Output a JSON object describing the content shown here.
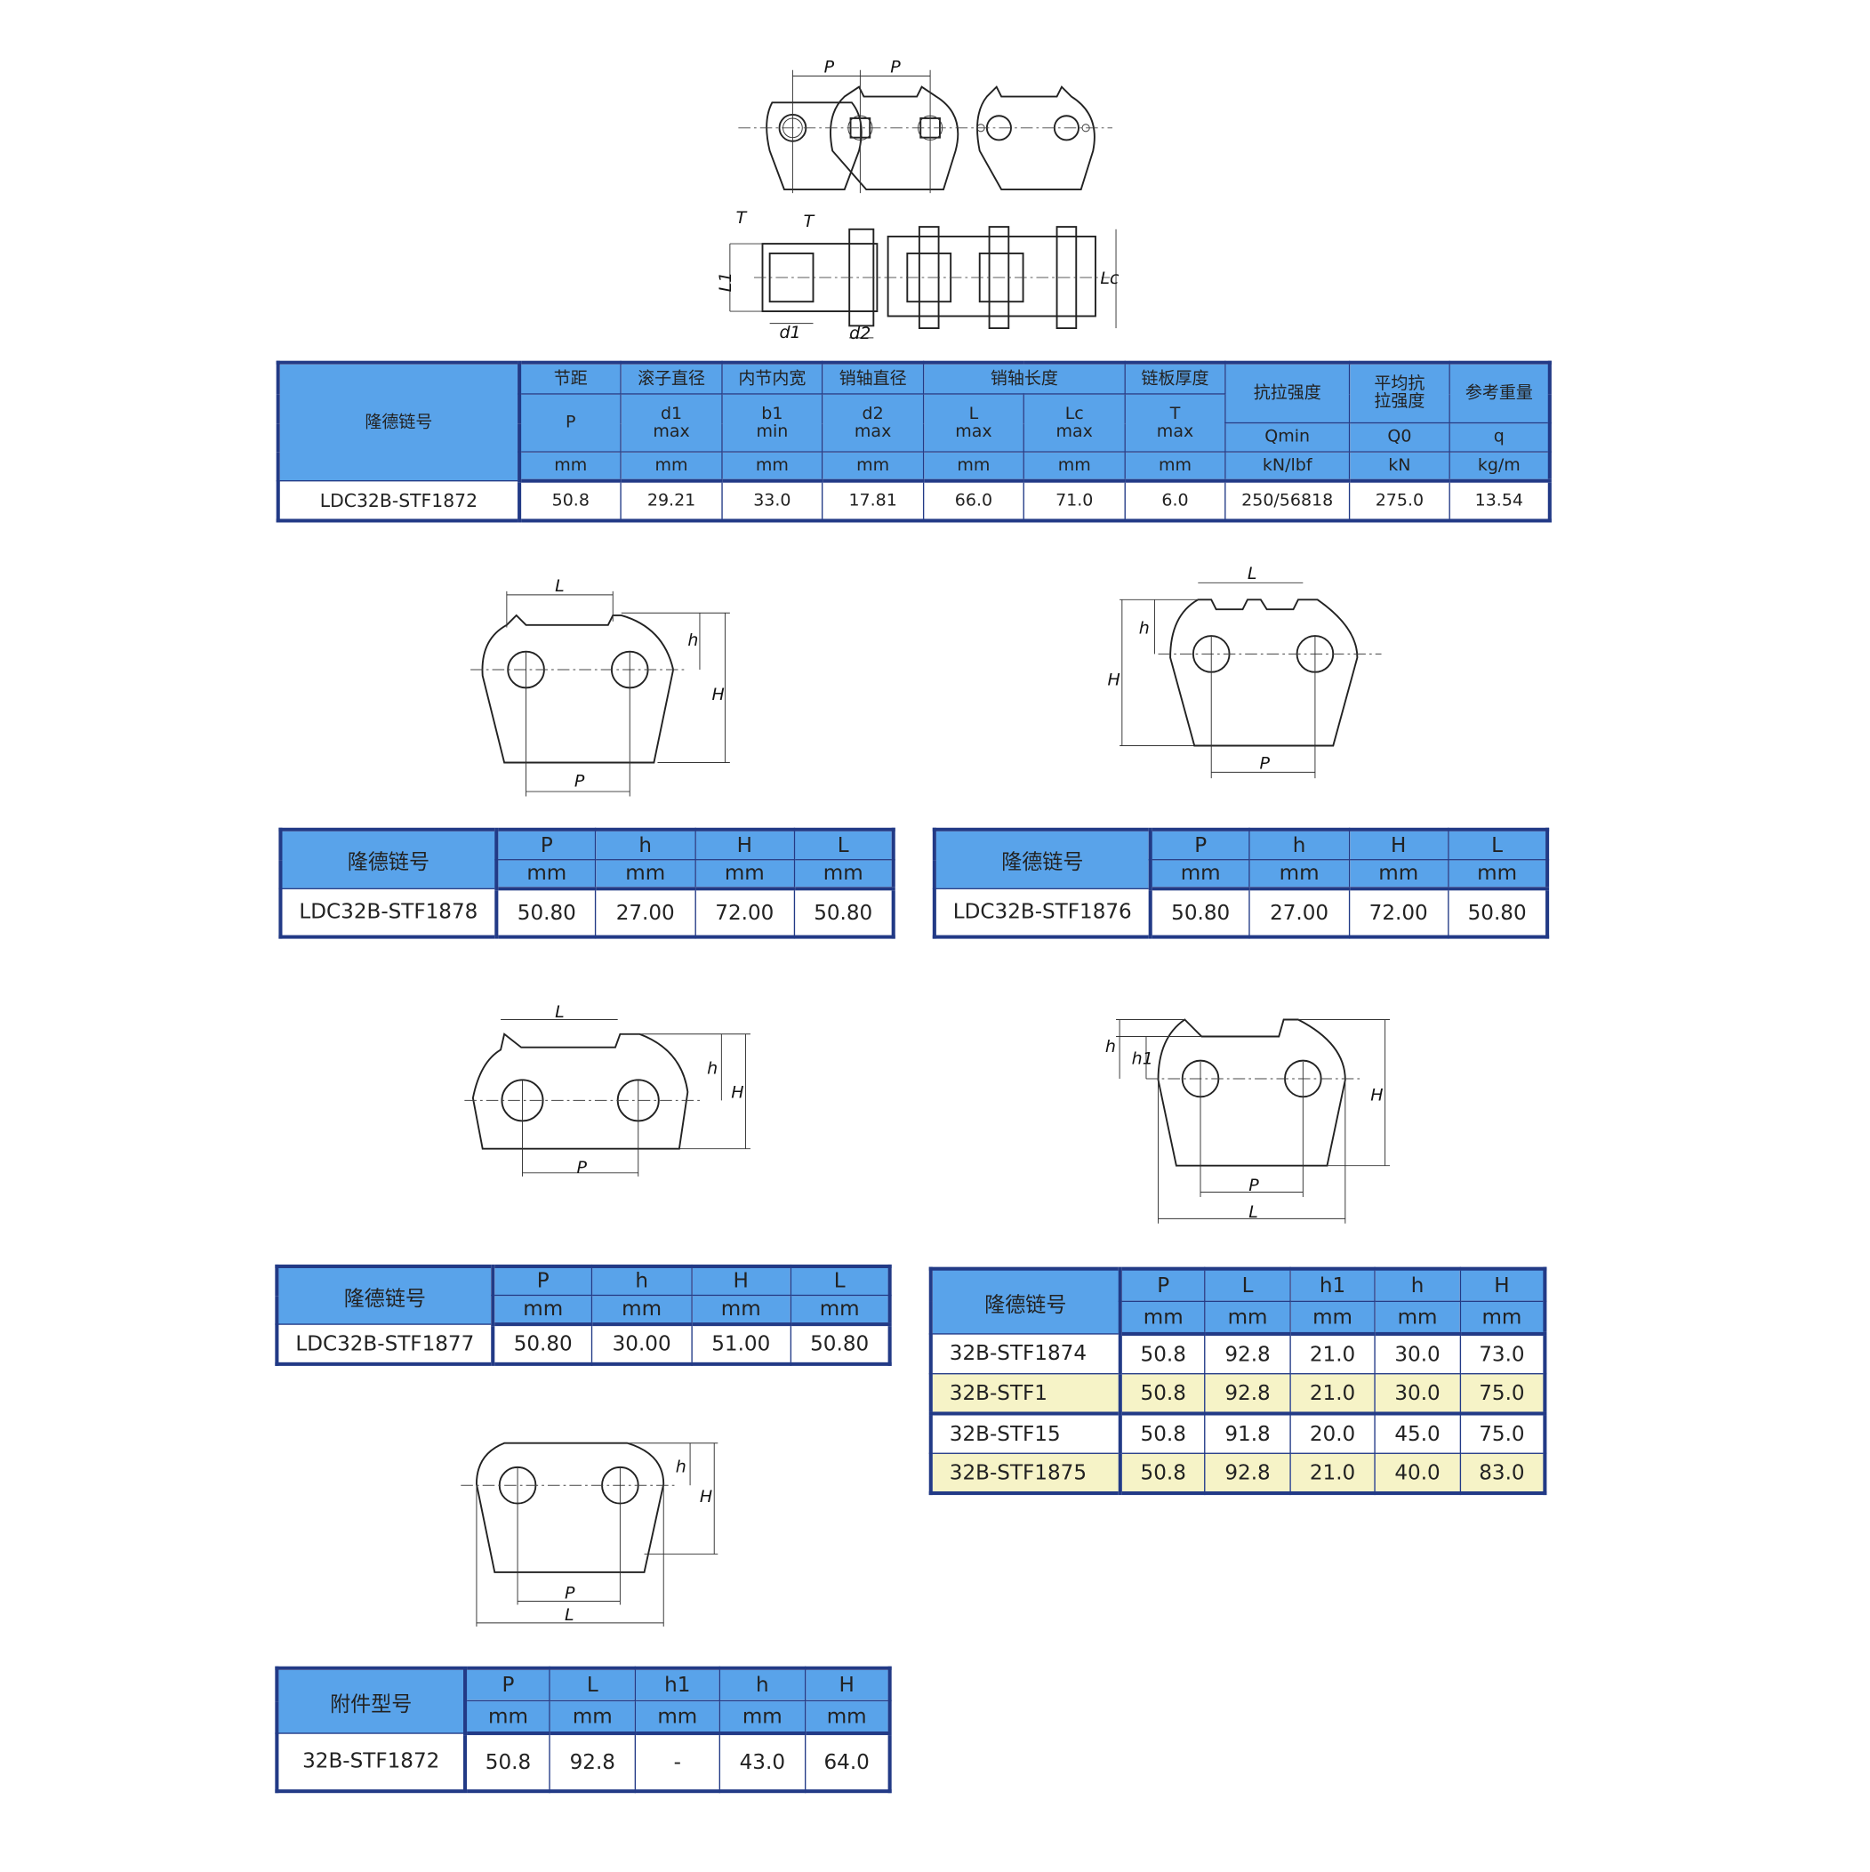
{
  "colors": {
    "header_fill": "#59a3ea",
    "border": "#223a86",
    "highlight_row": "#f6f3c7"
  },
  "drawings": {
    "chain": {
      "P": "P",
      "T": "T",
      "L1": "L1",
      "Lc": "Lc",
      "d1": "d1",
      "d2": "d2"
    },
    "plate_1878": {
      "L": "L",
      "h": "h",
      "H": "H",
      "P": "P"
    },
    "plate_1876": {
      "L": "L",
      "h": "h",
      "H": "H",
      "P": "P"
    },
    "plate_1877": {
      "L": "L",
      "h": "h",
      "H": "H",
      "P": "P"
    },
    "plate_1874": {
      "h": "h",
      "h1": "h1",
      "H": "H",
      "P": "P",
      "L": "L"
    },
    "plate_1872": {
      "h": "h",
      "H": "H",
      "P": "P",
      "L": "L"
    }
  },
  "main_table": {
    "name_header": "隆德链号",
    "groups": [
      "节距",
      "滚子直径",
      "内节内宽",
      "销轴直径",
      "销轴长度",
      "链板厚度",
      "抗拉强度",
      "平均抗拉强度",
      "参考重量"
    ],
    "symbols": [
      [
        "P",
        ""
      ],
      [
        "d1",
        "max"
      ],
      [
        "b1",
        "min"
      ],
      [
        "d2",
        "max"
      ],
      [
        "L",
        "max"
      ],
      [
        "Lc",
        "max"
      ],
      [
        "T",
        "max"
      ]
    ],
    "symbols2": [
      "Qmin",
      "Q0",
      "q"
    ],
    "units": [
      "mm",
      "mm",
      "mm",
      "mm",
      "mm",
      "mm",
      "mm",
      "kN/lbf",
      "kN",
      "kg/m"
    ],
    "row": [
      "LDC32B-STF1872",
      "50.8",
      "29.21",
      "33.0",
      "17.81",
      "66.0",
      "71.0",
      "6.0",
      "250/56818",
      "275.0",
      "13.54"
    ]
  },
  "table_1878": {
    "name_header": "隆德链号",
    "cols": [
      "P",
      "h",
      "H",
      "L"
    ],
    "units": [
      "mm",
      "mm",
      "mm",
      "mm"
    ],
    "row": [
      "LDC32B-STF1878",
      "50.80",
      "27.00",
      "72.00",
      "50.80"
    ]
  },
  "table_1876": {
    "name_header": "隆德链号",
    "cols": [
      "P",
      "h",
      "H",
      "L"
    ],
    "units": [
      "mm",
      "mm",
      "mm",
      "mm"
    ],
    "row": [
      "LDC32B-STF1876",
      "50.80",
      "27.00",
      "72.00",
      "50.80"
    ]
  },
  "table_1877": {
    "name_header": "隆德链号",
    "cols": [
      "P",
      "h",
      "H",
      "L"
    ],
    "units": [
      "mm",
      "mm",
      "mm",
      "mm"
    ],
    "row": [
      "LDC32B-STF1877",
      "50.80",
      "30.00",
      "51.00",
      "50.80"
    ]
  },
  "table_1874": {
    "name_header": "隆德链号",
    "cols": [
      "P",
      "L",
      "h1",
      "h",
      "H"
    ],
    "units": [
      "mm",
      "mm",
      "mm",
      "mm",
      "mm"
    ],
    "rows": [
      [
        "32B-STF1874",
        "50.8",
        "92.8",
        "21.0",
        "30.0",
        "73.0"
      ],
      [
        "32B-STF1",
        "50.8",
        "92.8",
        "21.0",
        "30.0",
        "75.0"
      ],
      [
        "32B-STF15",
        "50.8",
        "91.8",
        "20.0",
        "45.0",
        "75.0"
      ],
      [
        "32B-STF1875",
        "50.8",
        "92.8",
        "21.0",
        "40.0",
        "83.0"
      ]
    ]
  },
  "table_1872": {
    "name_header": "附件型号",
    "cols": [
      "P",
      "L",
      "h1",
      "h",
      "H"
    ],
    "units": [
      "mm",
      "mm",
      "mm",
      "mm",
      "mm"
    ],
    "row": [
      "32B-STF1872",
      "50.8",
      "92.8",
      "-",
      "43.0",
      "64.0"
    ]
  }
}
